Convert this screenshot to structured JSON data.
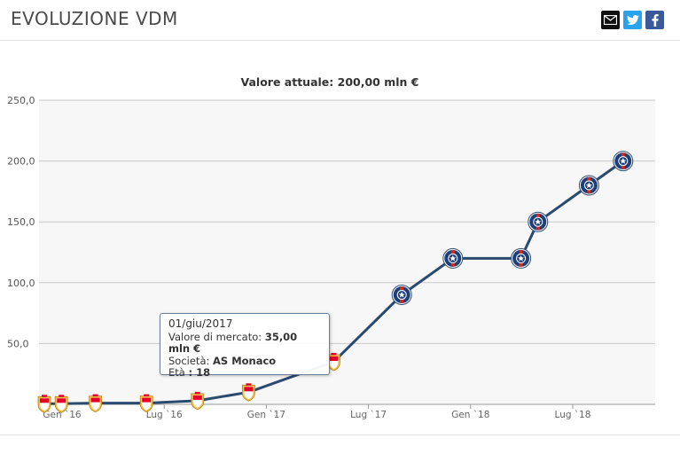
{
  "header": {
    "title": "EVOLUZIONE VDM",
    "share_icons": [
      "mail-icon",
      "twitter-icon",
      "facebook-icon"
    ]
  },
  "chart_data": {
    "type": "line",
    "title": "Valore attuale: 200,00 mln €",
    "xlabel": "",
    "ylabel": "",
    "ylim": [
      0,
      250
    ],
    "yticks": [
      "50,0",
      "100,0",
      "150,0",
      "200,0",
      "250,0"
    ],
    "xticks": [
      "Gen `16",
      "Lug `16",
      "Gen `17",
      "Lug `17",
      "Gen `18",
      "Lug `18"
    ],
    "grid": true,
    "points": [
      {
        "date": "2016-01",
        "value": 0.5,
        "club": "AS Monaco"
      },
      {
        "date": "2016-02",
        "value": 0.5,
        "club": "AS Monaco"
      },
      {
        "date": "2016-04",
        "value": 1,
        "club": "AS Monaco"
      },
      {
        "date": "2016-07",
        "value": 1,
        "club": "AS Monaco"
      },
      {
        "date": "2016-10",
        "value": 3,
        "club": "AS Monaco"
      },
      {
        "date": "2017-01",
        "value": 10,
        "club": "AS Monaco"
      },
      {
        "date": "2017-06",
        "value": 35,
        "club": "AS Monaco"
      },
      {
        "date": "2017-10",
        "value": 90,
        "club": "Paris Saint-Germain"
      },
      {
        "date": "2018-01",
        "value": 120,
        "club": "Paris Saint-Germain"
      },
      {
        "date": "2018-05",
        "value": 120,
        "club": "Paris Saint-Germain"
      },
      {
        "date": "2018-06",
        "value": 150,
        "club": "Paris Saint-Germain"
      },
      {
        "date": "2018-09",
        "value": 180,
        "club": "Paris Saint-Germain"
      },
      {
        "date": "2018-11",
        "value": 200,
        "club": "Paris Saint-Germain"
      }
    ],
    "line_color": "#2b4a6f",
    "monaco_colors": [
      "#e4002b",
      "#f2c14e"
    ],
    "psg_colors": [
      "#1d3f7a",
      "#d52b1e"
    ]
  },
  "tooltip": {
    "date": "01/giu/2017",
    "market_value_label": "Valore di mercato:",
    "market_value": "35,00 mln €",
    "club_label": "Società:",
    "club": "AS Monaco",
    "age_label": "Età",
    "age": ": 18"
  }
}
